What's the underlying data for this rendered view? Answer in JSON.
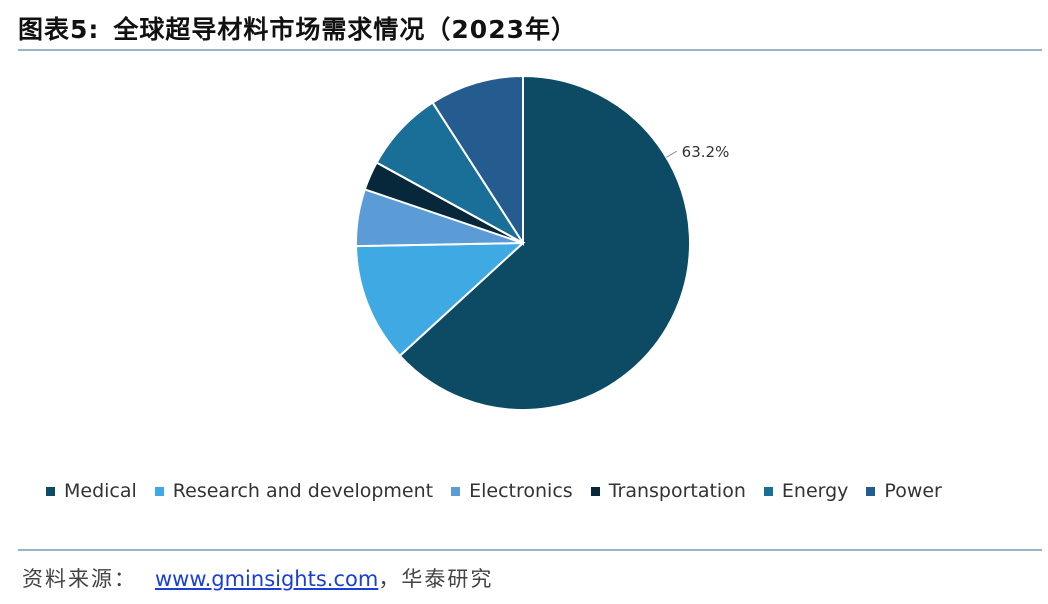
{
  "figure": {
    "label": "图表5:",
    "title": "全球超导材料市场需求情况（2023年）"
  },
  "source": {
    "prefix": "资料来源：",
    "link": "www.gminsights.com",
    "suffix": "，华泰研究"
  },
  "chart_data": {
    "type": "pie",
    "title": "全球超导材料市场需求情况（2023年）",
    "legend_position": "bottom",
    "start_angle_deg": 0,
    "direction": "clockwise",
    "slices": [
      {
        "label": "Medical",
        "value": 63.2,
        "color": "#0c4b63",
        "data_label": "63.2%"
      },
      {
        "label": "Research and development",
        "value": 11.5,
        "color": "#3fa9e4"
      },
      {
        "label": "Electronics",
        "value": 5.5,
        "color": "#5b9bd6"
      },
      {
        "label": "Transportation",
        "value": 2.8,
        "color": "#06283a"
      },
      {
        "label": "Energy",
        "value": 7.9,
        "color": "#1a6f99"
      },
      {
        "label": "Power",
        "value": 9.1,
        "color": "#245c8f"
      }
    ]
  }
}
